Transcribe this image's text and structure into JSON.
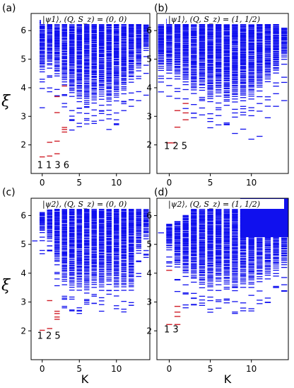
{
  "figure": {
    "xlabel": "K",
    "ylabel": "ξ"
  },
  "colors": {
    "blue": "#1010ee",
    "red": "#d0202a"
  },
  "chart_data": [
    {
      "id": "a",
      "type": "scatter",
      "marker": "horizontal-dash",
      "panel_label": "(a)",
      "title": "|ψ1⟩,  (Q, S_z) = (0, 0)",
      "x_ticks": [
        0,
        5,
        10
      ],
      "y_ticks": [
        2,
        3,
        4,
        5,
        6
      ],
      "xlim": [
        -1.5,
        14.5
      ],
      "ylim": [
        1.0,
        6.6
      ],
      "annotation": "1  1 3  6",
      "red_levels": [
        {
          "K": 0,
          "xi": 1.58
        },
        {
          "K": 1,
          "xi": 1.61
        },
        {
          "K": 2,
          "xi": 1.69
        },
        {
          "K": 1,
          "xi": 2.09
        },
        {
          "K": 2,
          "xi": 2.13
        },
        {
          "K": 3,
          "xi": 2.45
        },
        {
          "K": 3,
          "xi": 2.54
        },
        {
          "K": 3,
          "xi": 2.61
        },
        {
          "K": 2,
          "xi": 3.13
        },
        {
          "K": 2,
          "xi": 3.69
        },
        {
          "K": 3,
          "xi": 4.06
        }
      ],
      "blue_sparse": [
        {
          "K": 0,
          "xi": 3.3
        },
        {
          "K": 1,
          "xi": 3.86
        },
        {
          "K": 4,
          "xi": 2.52
        },
        {
          "K": 4,
          "xi": 2.85
        },
        {
          "K": 5,
          "xi": 2.64
        },
        {
          "K": 6,
          "xi": 2.92
        },
        {
          "K": 7,
          "xi": 2.75
        },
        {
          "K": 8,
          "xi": 2.86
        },
        {
          "K": 9,
          "xi": 2.54
        },
        {
          "K": 10,
          "xi": 2.74
        },
        {
          "K": 11,
          "xi": 3.2
        },
        {
          "K": 12,
          "xi": 3.35
        },
        {
          "K": 13,
          "xi": 3.55
        },
        {
          "K": 14,
          "xi": 3.74
        },
        {
          "K": 3,
          "xi": 3.45
        },
        {
          "K": 5,
          "xi": 3.12
        },
        {
          "K": 6,
          "xi": 3.34
        },
        {
          "K": 8,
          "xi": 3.18
        }
      ],
      "dense_bands": [
        {
          "K": 0,
          "from": 4.55,
          "to": 6.35
        },
        {
          "K": 1,
          "from": 4.7,
          "to": 6.4
        },
        {
          "K": 2,
          "from": 4.4,
          "to": 6.4
        },
        {
          "K": 3,
          "from": 4.1,
          "to": 6.45
        },
        {
          "K": 4,
          "from": 3.7,
          "to": 6.45
        },
        {
          "K": 5,
          "from": 3.5,
          "to": 6.45
        },
        {
          "K": 6,
          "from": 3.3,
          "to": 6.45
        },
        {
          "K": 7,
          "from": 3.45,
          "to": 6.45
        },
        {
          "K": 8,
          "from": 3.6,
          "to": 6.45
        },
        {
          "K": 9,
          "from": 3.4,
          "to": 6.45
        },
        {
          "K": 10,
          "from": 3.55,
          "to": 6.45
        },
        {
          "K": 11,
          "from": 3.8,
          "to": 6.45
        },
        {
          "K": 12,
          "from": 4.2,
          "to": 6.4
        },
        {
          "K": 13,
          "from": 4.6,
          "to": 6.3
        },
        {
          "K": 14,
          "from": 5.3,
          "to": 6.2
        }
      ]
    },
    {
      "id": "b",
      "type": "scatter",
      "marker": "horizontal-dash",
      "panel_label": "(b)",
      "title": "|ψ1⟩,  (Q, S_z) = (1, 1/2)",
      "x_ticks": [
        0,
        5,
        10
      ],
      "y_ticks": [
        2,
        3,
        4,
        5,
        6
      ],
      "xlim": [
        -1.5,
        14.5
      ],
      "ylim": [
        1.0,
        6.6
      ],
      "annotation": "1 2 5",
      "red_levels": [
        {
          "K": 0,
          "xi": 2.07
        },
        {
          "K": 0.4,
          "xi": 2.07
        },
        {
          "K": 1,
          "xi": 2.62
        },
        {
          "K": 2,
          "xi": 2.88
        },
        {
          "K": 2,
          "xi": 3.12
        },
        {
          "K": 1,
          "xi": 3.2
        },
        {
          "K": 2,
          "xi": 3.45
        }
      ],
      "blue_sparse": [
        {
          "K": -1,
          "xi": 4.2
        },
        {
          "K": 3,
          "xi": 2.95
        },
        {
          "K": 4,
          "xi": 3.05
        },
        {
          "K": 5,
          "xi": 2.6
        },
        {
          "K": 6,
          "xi": 2.7
        },
        {
          "K": 7,
          "xi": 2.72
        },
        {
          "K": 8,
          "xi": 2.4
        },
        {
          "K": 9,
          "xi": 2.55
        },
        {
          "K": 10,
          "xi": 2.2
        },
        {
          "K": 11,
          "xi": 2.3
        },
        {
          "K": 12,
          "xi": 2.95
        },
        {
          "K": 13,
          "xi": 3.35
        },
        {
          "K": 14,
          "xi": 3.55
        },
        {
          "K": 4,
          "xi": 3.55
        },
        {
          "K": 6,
          "xi": 3.3
        },
        {
          "K": 9,
          "xi": 3.05
        }
      ],
      "dense_bands": [
        {
          "K": -1,
          "from": 4.6,
          "to": 6.2
        },
        {
          "K": 0,
          "from": 4.5,
          "to": 6.4
        },
        {
          "K": 1,
          "from": 4.3,
          "to": 6.45
        },
        {
          "K": 2,
          "from": 4.1,
          "to": 6.45
        },
        {
          "K": 3,
          "from": 3.8,
          "to": 6.45
        },
        {
          "K": 4,
          "from": 3.9,
          "to": 6.45
        },
        {
          "K": 5,
          "from": 3.5,
          "to": 6.45
        },
        {
          "K": 6,
          "from": 3.7,
          "to": 6.45
        },
        {
          "K": 7,
          "from": 3.4,
          "to": 6.45
        },
        {
          "K": 8,
          "from": 3.5,
          "to": 6.45
        },
        {
          "K": 9,
          "from": 3.55,
          "to": 6.45
        },
        {
          "K": 10,
          "from": 3.6,
          "to": 6.45
        },
        {
          "K": 11,
          "from": 3.9,
          "to": 6.4
        },
        {
          "K": 12,
          "from": 4.2,
          "to": 6.3
        },
        {
          "K": 13,
          "from": 4.5,
          "to": 6.2
        },
        {
          "K": 14,
          "from": 5.0,
          "to": 6.1
        }
      ]
    },
    {
      "id": "c",
      "type": "scatter",
      "marker": "horizontal-dash",
      "panel_label": "(c)",
      "title": "|ψ2⟩,  (Q, S_z) = (0, 0)",
      "x_ticks": [
        0,
        5,
        10
      ],
      "y_ticks": [
        2,
        3,
        4,
        5,
        6
      ],
      "xlim": [
        -1.5,
        14.5
      ],
      "ylim": [
        1.0,
        6.6
      ],
      "annotation": "1 2 5",
      "red_levels": [
        {
          "K": 0,
          "xi": 2.02
        },
        {
          "K": 1,
          "xi": 2.08
        },
        {
          "K": 2,
          "xi": 2.4
        },
        {
          "K": 2,
          "xi": 2.48
        },
        {
          "K": 2,
          "xi": 2.6
        },
        {
          "K": 2,
          "xi": 2.68
        },
        {
          "K": 1,
          "xi": 3.05
        }
      ],
      "blue_sparse": [
        {
          "K": -1,
          "xi": 5.12
        },
        {
          "K": 0,
          "xi": 5.25
        },
        {
          "K": 1,
          "xi": 4.8
        },
        {
          "K": 3,
          "xi": 2.85
        },
        {
          "K": 3,
          "xi": 3.2
        },
        {
          "K": 4,
          "xi": 3.1
        },
        {
          "K": 5,
          "xi": 2.8
        },
        {
          "K": 6,
          "xi": 3.05
        },
        {
          "K": 7,
          "xi": 2.95
        },
        {
          "K": 8,
          "xi": 3.15
        },
        {
          "K": 9,
          "xi": 3.4
        },
        {
          "K": 13,
          "xi": 4.4
        },
        {
          "K": 14,
          "xi": 4.55
        },
        {
          "K": 2,
          "xi": 3.8
        }
      ],
      "dense_bands": [
        {
          "K": 0,
          "from": 5.4,
          "to": 6.1
        },
        {
          "K": 1,
          "from": 5.1,
          "to": 6.2
        },
        {
          "K": 2,
          "from": 4.3,
          "to": 6.3
        },
        {
          "K": 3,
          "from": 3.6,
          "to": 6.35
        },
        {
          "K": 4,
          "from": 3.4,
          "to": 6.4
        },
        {
          "K": 5,
          "from": 3.4,
          "to": 6.4
        },
        {
          "K": 6,
          "from": 3.3,
          "to": 6.4
        },
        {
          "K": 7,
          "from": 3.5,
          "to": 6.4
        },
        {
          "K": 8,
          "from": 3.4,
          "to": 6.4
        },
        {
          "K": 9,
          "from": 3.6,
          "to": 6.4
        },
        {
          "K": 10,
          "from": 3.4,
          "to": 6.4
        },
        {
          "K": 11,
          "from": 3.4,
          "to": 6.4
        },
        {
          "K": 12,
          "from": 3.4,
          "to": 6.4
        },
        {
          "K": 13,
          "from": 4.7,
          "to": 6.3
        },
        {
          "K": 14,
          "from": 5.2,
          "to": 6.2
        }
      ]
    },
    {
      "id": "d",
      "type": "scatter",
      "marker": "horizontal-dash",
      "panel_label": "(d)",
      "title": "|ψ2⟩,  (Q, S_z) = (1, 1/2)",
      "x_ticks": [
        0,
        5,
        10
      ],
      "y_ticks": [
        2,
        3,
        4,
        5,
        6
      ],
      "xlim": [
        -1.5,
        14.5
      ],
      "ylim": [
        1.0,
        6.6
      ],
      "annotation": "1 3",
      "red_levels": [
        {
          "K": 0,
          "xi": 2.22
        },
        {
          "K": 1,
          "xi": 2.22
        },
        {
          "K": 1,
          "xi": 2.5
        },
        {
          "K": 1,
          "xi": 2.65
        },
        {
          "K": 1,
          "xi": 2.85
        },
        {
          "K": 0,
          "xi": 4.1
        }
      ],
      "blue_sparse": [
        {
          "K": -1,
          "xi": 5.4
        },
        {
          "K": 2,
          "xi": 2.8
        },
        {
          "K": 2,
          "xi": 2.9
        },
        {
          "K": 3,
          "xi": 2.9
        },
        {
          "K": 3,
          "xi": 3.3
        },
        {
          "K": 4,
          "xi": 3.2
        },
        {
          "K": 5,
          "xi": 3.05
        },
        {
          "K": 6,
          "xi": 3.4
        },
        {
          "K": 7,
          "xi": 3.45
        },
        {
          "K": 8,
          "xi": 3.5
        },
        {
          "K": 13,
          "xi": 3.9
        },
        {
          "K": 14,
          "xi": 3.85
        },
        {
          "K": 0,
          "xi": 4.4
        },
        {
          "K": 1,
          "xi": 4.75
        }
      ],
      "dense_bands": [
        {
          "K": 0,
          "from": 4.8,
          "to": 5.7
        },
        {
          "K": 1,
          "from": 4.2,
          "to": 5.8
        },
        {
          "K": 2,
          "from": 3.9,
          "to": 6.0
        },
        {
          "K": 3,
          "from": 3.7,
          "to": 6.2
        },
        {
          "K": 4,
          "from": 3.5,
          "to": 6.3
        },
        {
          "K": 5,
          "from": 3.4,
          "to": 6.4
        },
        {
          "K": 6,
          "from": 3.6,
          "to": 6.45
        },
        {
          "K": 7,
          "from": 3.5,
          "to": 6.5
        },
        {
          "K": 8,
          "from": 3.4,
          "to": 6.5
        },
        {
          "K": 9,
          "from": 3.5,
          "to": 6.55
        },
        {
          "K": 10,
          "from": 3.5,
          "to": 6.6
        },
        {
          "K": 11,
          "from": 3.7,
          "to": 6.6
        },
        {
          "K": 12,
          "from": 3.8,
          "to": 6.6
        },
        {
          "K": 13,
          "from": 4.0,
          "to": 6.6
        },
        {
          "K": 14,
          "from": 4.2,
          "to": 6.6
        }
      ],
      "dense_blocks": [
        {
          "K_from": 9,
          "K_to": 14.5,
          "from": 5.25,
          "to": 6.6
        }
      ]
    }
  ]
}
